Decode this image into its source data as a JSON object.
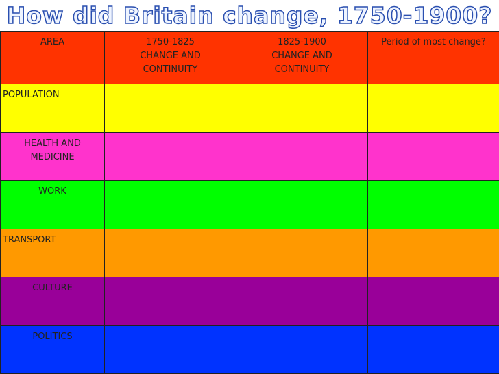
{
  "header": {
    "title": "How did Britain change, 1750-1900?"
  },
  "table": {
    "header": [
      {
        "lines": [
          "AREA"
        ],
        "color": "#ff3300"
      },
      {
        "lines": [
          "1750-1825",
          "CHANGE AND",
          "CONTINUITY"
        ],
        "color": "#ff3300"
      },
      {
        "lines": [
          "1825-1900",
          "CHANGE AND",
          "CONTINUITY"
        ],
        "color": "#ff3300"
      },
      {
        "lines": [
          "Period of most change?"
        ],
        "color": "#ff3300"
      }
    ],
    "rows": [
      {
        "label": "POPULATION",
        "color": "#ffff00"
      },
      {
        "label": "HEALTH AND MEDICINE",
        "color": "#ff33cc"
      },
      {
        "label": "WORK",
        "color": "#00ff00"
      },
      {
        "label": "TRANSPORT",
        "color": "#ff9900"
      },
      {
        "label": "CULTURE",
        "color": "#990099"
      },
      {
        "label": "POLITICS",
        "color": "#0033ff"
      }
    ]
  }
}
